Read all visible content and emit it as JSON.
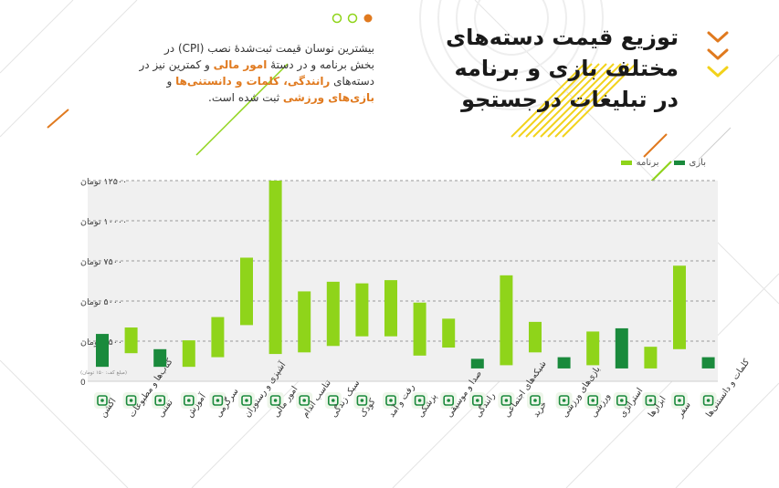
{
  "header": {
    "title_lines": [
      "توزیع قیمت دسته‌های",
      "مختلف بازی و برنامه",
      "در تبلیغات درجستجو"
    ],
    "desc_part1": "بیشترین نوسان قیمت ثبت‌شدهٔ نصب (CPI) در بخش برنامه و در دستهٔ ",
    "desc_hl1": "امور مالی",
    "desc_part2": " و کمترین نیز در دسته‌های ",
    "desc_hl2": "رانندگی، کلمات و دانستنی‌ها",
    "desc_part3": " و ",
    "desc_hl3": "بازی‌های ورزشی",
    "desc_part4": " ثبت شده است."
  },
  "colors": {
    "game": "#1a8a3c",
    "app": "#8fd41a",
    "accent_orange": "#e07a1f",
    "accent_yellow": "#f2d21b",
    "plot_bg": "#f0f0f0"
  },
  "chart_data": {
    "type": "bar",
    "subtype": "floating-range",
    "title": "",
    "unit_note": "(مبلغ کف: ۱۵۰ تومان)",
    "ylim": [
      0,
      12500
    ],
    "yticks": [
      {
        "value": 0,
        "label": "0"
      },
      {
        "value": 2500,
        "label": "۲۵۰۰ تومان"
      },
      {
        "value": 5000,
        "label": "۵۰۰۰ تومان"
      },
      {
        "value": 7500,
        "label": "۷۵۰۰ تومان"
      },
      {
        "value": 10000,
        "label": "۱۰۰۰۰ تومان"
      },
      {
        "value": 12500,
        "label": "۱۲۵۰۰ تومان"
      }
    ],
    "legend": [
      {
        "key": "game",
        "label": "بازی"
      },
      {
        "key": "app",
        "label": "برنامه"
      }
    ],
    "legend_position": "top-right",
    "grid": true,
    "categories": [
      {
        "label": "اکشن",
        "series": "game",
        "min": 900,
        "max": 2950,
        "icon": "gun-icon"
      },
      {
        "label": "کتاب‌ها و مطبوعات",
        "series": "app",
        "min": 1750,
        "max": 3350,
        "icon": "book-icon"
      },
      {
        "label": "تفننی",
        "series": "game",
        "min": 900,
        "max": 2000,
        "icon": "hash-icon"
      },
      {
        "label": "آموزش",
        "series": "app",
        "min": 900,
        "max": 2550,
        "icon": "graduation-icon"
      },
      {
        "label": "سرگرمی",
        "series": "app",
        "min": 1500,
        "max": 4000,
        "icon": "puzzle-icon"
      },
      {
        "label": "آشپزی و رستوران",
        "series": "app",
        "min": 3500,
        "max": 7700,
        "icon": "cooking-pot-icon"
      },
      {
        "label": "امور مالی",
        "series": "app",
        "min": 1700,
        "max": 12500,
        "icon": "wallet-icon"
      },
      {
        "label": "تناسب اندام",
        "series": "app",
        "min": 1800,
        "max": 5600,
        "icon": "dumbbell-icon"
      },
      {
        "label": "سبک زندگی",
        "series": "app",
        "min": 2200,
        "max": 6200,
        "icon": "sofa-icon"
      },
      {
        "label": "کودک",
        "series": "app",
        "min": 2800,
        "max": 6100,
        "icon": "toy-icon"
      },
      {
        "label": "رفت و آمد",
        "series": "app",
        "min": 2800,
        "max": 6300,
        "icon": "car-icon"
      },
      {
        "label": "پزشکی",
        "series": "app",
        "min": 1600,
        "max": 4900,
        "icon": "medicine-icon"
      },
      {
        "label": "صدا و موسیقی",
        "series": "app",
        "min": 2100,
        "max": 3900,
        "icon": "music-note-icon"
      },
      {
        "label": "رانندگی",
        "series": "game",
        "min": 800,
        "max": 1400,
        "icon": "steering-wheel-icon"
      },
      {
        "label": "شبکه‌های اجتماعی",
        "series": "app",
        "min": 1000,
        "max": 6600,
        "icon": "social-network-icon"
      },
      {
        "label": "خرید",
        "series": "app",
        "min": 1800,
        "max": 3700,
        "icon": "shopping-cart-icon"
      },
      {
        "label": "بازی‌های ورزشی",
        "series": "game",
        "min": 800,
        "max": 1500,
        "icon": "ball-icon"
      },
      {
        "label": "ورزشی",
        "series": "app",
        "min": 1000,
        "max": 3100,
        "icon": "gamepad-icon"
      },
      {
        "label": "استراتژی",
        "series": "game",
        "min": 800,
        "max": 3300,
        "icon": "castle-icon"
      },
      {
        "label": "ابزارها",
        "series": "app",
        "min": 800,
        "max": 2150,
        "icon": "tools-icon"
      },
      {
        "label": "سفر",
        "series": "app",
        "min": 2000,
        "max": 7200,
        "icon": "suitcase-icon"
      },
      {
        "label": "کلمات و دانستنی‌ها",
        "series": "game",
        "min": 800,
        "max": 1500,
        "icon": "quiz-icon"
      }
    ]
  }
}
